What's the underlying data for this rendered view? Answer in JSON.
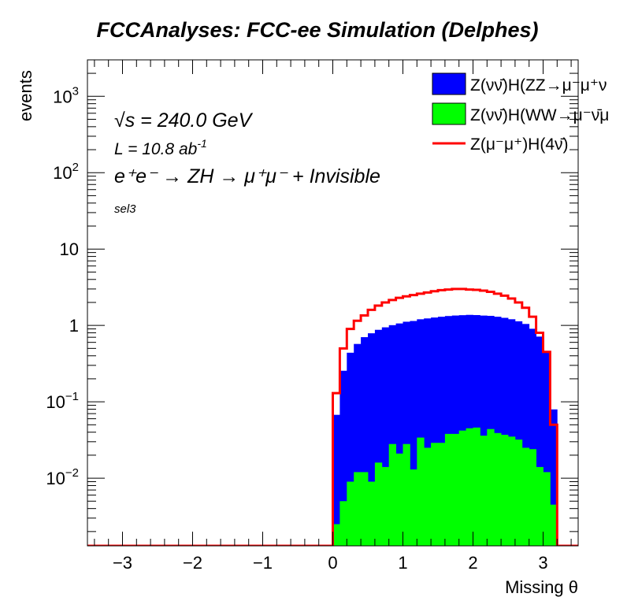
{
  "chart_data": {
    "type": "histogram",
    "title": "FCCAnalyses: FCC-ee Simulation (Delphes)",
    "xlabel": "Missing θ",
    "ylabel": "events",
    "xlim": [
      -3.5,
      3.5
    ],
    "ylim": [
      0.0013,
      3000
    ],
    "log_y": true,
    "grid": false,
    "legend_position": "top-right",
    "x_ticks": [
      -3,
      -2,
      -1,
      0,
      1,
      2,
      3
    ],
    "x_tick_labels": [
      "−3",
      "−2",
      "−1",
      "0",
      "1",
      "2",
      "3"
    ],
    "y_ticks": [
      0.01,
      0.1,
      1,
      10,
      100,
      1000
    ],
    "y_tick_labels": [
      {
        "base": "10",
        "exp": "−2"
      },
      {
        "base": "10",
        "exp": "−1"
      },
      {
        "base": "1",
        "exp": ""
      },
      {
        "base": "10",
        "exp": ""
      },
      {
        "base": "10",
        "exp": "2"
      },
      {
        "base": "10",
        "exp": "3"
      }
    ],
    "annotations": {
      "sqrt_s_symbol": "√s",
      "sqrt_s_text": " = 240.0 GeV",
      "lumi_text": "L = 10.8 ab",
      "lumi_exp": "-1",
      "process_text": "e⁺e⁻ → ZH → μ⁺μ⁻ + Invisible",
      "selection": "sel3"
    },
    "bin_width": 0.1,
    "stack_x_range": [
      0.0,
      3.2
    ],
    "series": [
      {
        "name": "Z(νν̄)H(ZZ→μ⁻μ⁺ν",
        "style": "stacked-fill",
        "color": "#0000ff",
        "values": [
          0.065,
          0.25,
          0.43,
          0.56,
          0.69,
          0.78,
          0.86,
          0.93,
          0.98,
          1.04,
          1.09,
          1.13,
          1.17,
          1.21,
          1.24,
          1.27,
          1.29,
          1.31,
          1.32,
          1.33,
          1.32,
          1.31,
          1.29,
          1.26,
          1.22,
          1.17,
          1.1,
          1.02,
          0.88,
          0.7,
          0.45,
          0.075
        ]
      },
      {
        "name": "Z(νν̄)H(WW→μ⁻ν̄μ",
        "style": "stacked-fill",
        "color": "#00ff00",
        "values": [
          0.0025,
          0.005,
          0.009,
          0.012,
          0.012,
          0.009,
          0.016,
          0.014,
          0.028,
          0.021,
          0.028,
          0.013,
          0.034,
          0.025,
          0.029,
          0.029,
          0.038,
          0.038,
          0.042,
          0.045,
          0.046,
          0.036,
          0.044,
          0.039,
          0.037,
          0.035,
          0.032,
          0.025,
          0.024,
          0.014,
          0.012,
          0.0045
        ]
      },
      {
        "name": "Z(μ⁻μ⁺)H(4ν̄)",
        "style": "line",
        "color": "#ff0000",
        "values": [
          0.13,
          0.5,
          0.9,
          1.15,
          1.35,
          1.6,
          1.82,
          2.0,
          2.15,
          2.3,
          2.4,
          2.5,
          2.6,
          2.7,
          2.8,
          2.9,
          2.95,
          3.0,
          3.0,
          2.95,
          2.92,
          2.85,
          2.75,
          2.6,
          2.45,
          2.25,
          2.0,
          1.7,
          1.3,
          0.8,
          0.45,
          0.05
        ]
      }
    ]
  }
}
